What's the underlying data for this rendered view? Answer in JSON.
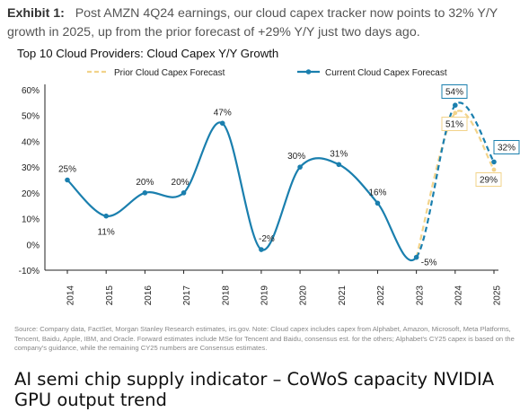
{
  "exhibit": {
    "label": "Exhibit 1:",
    "text": "Post AMZN 4Q24 earnings, our cloud capex tracker now points to 32% Y/Y growth in 2025, up from the prior forecast of +29% Y/Y just two days ago."
  },
  "chart_data": {
    "type": "line",
    "title": "Top 10 Cloud Providers: Cloud Capex Y/Y Growth",
    "xlabel": "",
    "ylabel": "",
    "ylim": [
      -10,
      60
    ],
    "yticks": [
      "60%",
      "50%",
      "40%",
      "30%",
      "20%",
      "10%",
      "0%",
      "-10%"
    ],
    "x": [
      "2014",
      "2015",
      "2016",
      "2017",
      "2018",
      "2019",
      "2020",
      "2021",
      "2022",
      "2023",
      "2024",
      "2025"
    ],
    "legend_position": "top",
    "series": [
      {
        "name": "Prior Cloud Capex Forecast",
        "color": "#f2d38a",
        "style": "dashed",
        "x": [
          "2023",
          "2024",
          "2025"
        ],
        "values": [
          -5,
          51,
          29
        ],
        "labels": [
          "",
          "51%",
          "29%"
        ]
      },
      {
        "name": "Current Cloud Capex Forecast",
        "color": "#1a7fae",
        "style": "solid",
        "dashed_from": "2023",
        "x": [
          "2014",
          "2015",
          "2016",
          "2017",
          "2018",
          "2019",
          "2020",
          "2021",
          "2022",
          "2023",
          "2024",
          "2025"
        ],
        "values": [
          25,
          11,
          20,
          20,
          47,
          -2,
          30,
          31,
          16,
          -5,
          54,
          32
        ],
        "labels": [
          "25%",
          "11%",
          "20%",
          "20%",
          "47%",
          "-2%",
          "30%",
          "31%",
          "16%",
          "-5%",
          "54%",
          "32%"
        ]
      }
    ]
  },
  "source": "Source: Company data, FactSet, Morgan Stanley Research estimates, irs.gov. Note: Cloud capex includes capex from Alphabet, Amazon, Microsoft, Meta Platforms, Tencent, Baidu, Apple, IBM, and Oracle. Forward estimates include MSe for Tencent and Baidu, consensus est. for the others; Alphabet's CY25 capex is based on the company's guidance, while the remaining CY25 numbers are Consensus estimates.",
  "next_heading": "AI semi chip supply indicator – CoWoS capacity NVIDIA GPU output trend"
}
